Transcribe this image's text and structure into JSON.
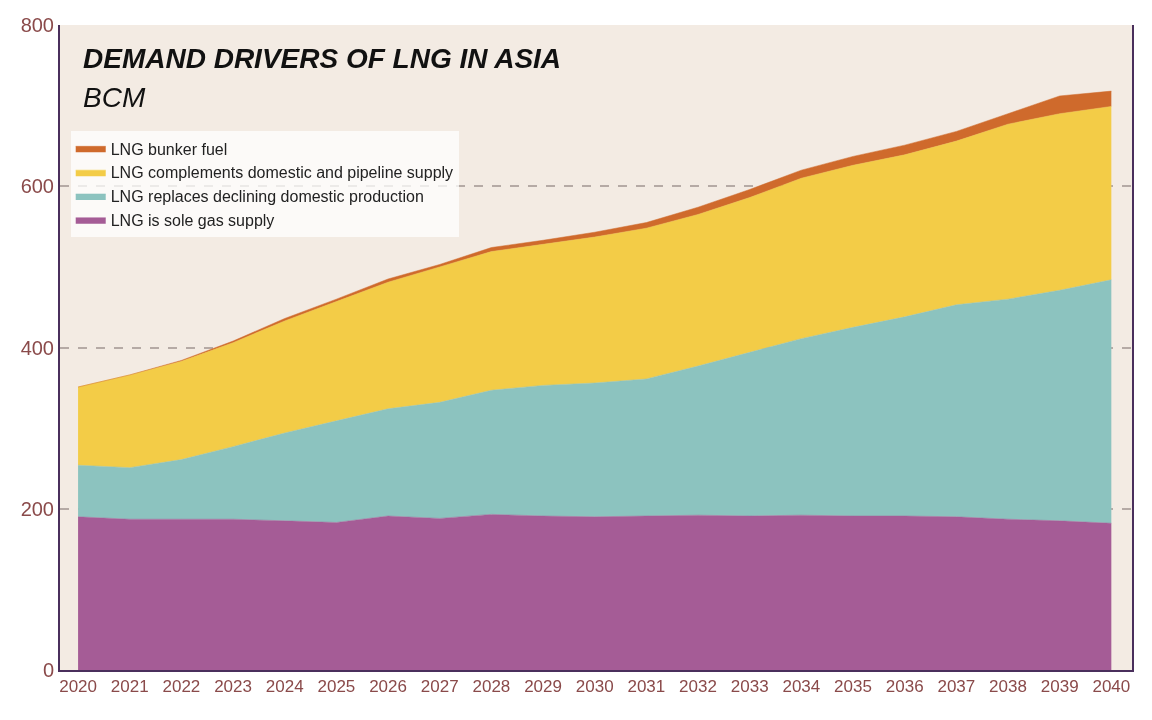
{
  "chart_data": {
    "type": "area",
    "title": "DEMAND DRIVERS OF LNG IN ASIA",
    "subtitle": "BCM",
    "categories": [
      "2020",
      "2021",
      "2022",
      "2023",
      "2024",
      "2025",
      "2026",
      "2027",
      "2028",
      "2029",
      "2030",
      "2031",
      "2032",
      "2033",
      "2034",
      "2035",
      "2036",
      "2037",
      "2038",
      "2039",
      "2040"
    ],
    "stacked": true,
    "series": [
      {
        "name": "LNG is sole gas supply",
        "color": "#a55c96",
        "values": [
          190,
          187,
          187,
          187,
          185,
          183,
          191,
          188,
          193,
          191,
          190,
          191,
          192,
          191,
          192,
          191,
          191,
          190,
          187,
          185,
          182
        ]
      },
      {
        "name": "LNG replaces declining domestic production",
        "color": "#8cc3bf",
        "values": [
          64,
          64,
          74,
          90,
          109,
          126,
          133,
          144,
          154,
          162,
          166,
          170,
          185,
          203,
          219,
          234,
          247,
          263,
          273,
          286,
          302
        ]
      },
      {
        "name": "LNG complements domestic and pipeline supply",
        "color": "#f3cc47",
        "values": [
          97,
          115,
          122,
          129,
          139,
          148,
          157,
          168,
          172,
          175,
          181,
          187,
          188,
          192,
          199,
          201,
          201,
          203,
          217,
          219,
          215
        ]
      },
      {
        "name": "LNG bunker fuel",
        "color": "#cf6a2c",
        "values": [
          0,
          0,
          1,
          2,
          3,
          3,
          4,
          3,
          5,
          5,
          6,
          7,
          9,
          10,
          10,
          11,
          12,
          12,
          13,
          22,
          19
        ]
      }
    ],
    "ylim": [
      0,
      800
    ],
    "yticks": [
      0,
      200,
      400,
      600,
      800
    ],
    "grid": "y",
    "legend": "top left"
  }
}
